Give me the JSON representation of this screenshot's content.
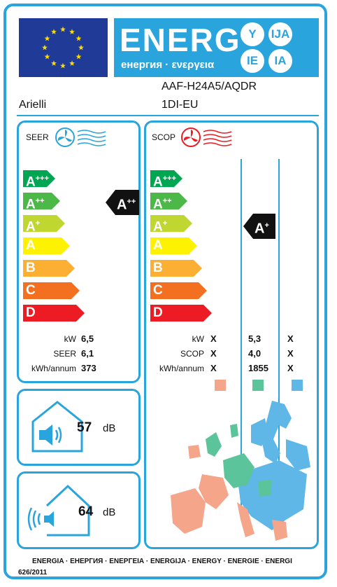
{
  "header": {
    "energy_title": "ENERG",
    "energy_subtitle": "енергия · ενεργεια",
    "lang_circles": [
      "Y",
      "IJA",
      "IE",
      "IA"
    ]
  },
  "product": {
    "supplier": "Arielli",
    "model_line1": "AAF-H24A5/AQDR",
    "model_line2": "1DI-EU"
  },
  "seer": {
    "title": "SEER",
    "scale": [
      {
        "letter": "A",
        "plus": "+++",
        "color": "#00a651"
      },
      {
        "letter": "A",
        "plus": "++",
        "color": "#4cb847"
      },
      {
        "letter": "A",
        "plus": "+",
        "color": "#bfd730"
      },
      {
        "letter": "A",
        "plus": "",
        "color": "#fff200"
      },
      {
        "letter": "B",
        "plus": "",
        "color": "#fbb034"
      },
      {
        "letter": "C",
        "plus": "",
        "color": "#f37021"
      },
      {
        "letter": "D",
        "plus": "",
        "color": "#ed1c24"
      }
    ],
    "rating": {
      "letter": "A",
      "plus": "++"
    },
    "rows": [
      {
        "label": "kW",
        "value": "6,5"
      },
      {
        "label": "SEER",
        "value": "6,1"
      },
      {
        "label": "kWh/annum",
        "value": "373"
      }
    ]
  },
  "scop": {
    "title": "SCOP",
    "scale": [
      {
        "letter": "A",
        "plus": "+++",
        "color": "#00a651"
      },
      {
        "letter": "A",
        "plus": "++",
        "color": "#4cb847"
      },
      {
        "letter": "A",
        "plus": "+",
        "color": "#bfd730"
      },
      {
        "letter": "A",
        "plus": "",
        "color": "#fff200"
      },
      {
        "letter": "B",
        "plus": "",
        "color": "#fbb034"
      },
      {
        "letter": "C",
        "plus": "",
        "color": "#f37021"
      },
      {
        "letter": "D",
        "plus": "",
        "color": "#ed1c24"
      }
    ],
    "rating": {
      "letter": "A",
      "plus": "+"
    },
    "rows": [
      {
        "label": "kW",
        "cols": [
          "X",
          "5,3",
          "X"
        ]
      },
      {
        "label": "SCOP",
        "cols": [
          "X",
          "4,0",
          "X"
        ]
      },
      {
        "label": "kWh/annum",
        "cols": [
          "X",
          "1855",
          "X"
        ]
      }
    ],
    "climate_colors": [
      "#f4a58a",
      "#5cc49a",
      "#5fb7e8"
    ]
  },
  "noise": {
    "indoor_value": "57",
    "indoor_unit": "dB",
    "outdoor_value": "64",
    "outdoor_unit": "dB"
  },
  "footer": {
    "languages": "ENERGIA · ЕНЕРГИЯ · ΕΝΕΡΓΕΙΑ · ENERGIJA · ENERGY · ENERGIE · ENERGI",
    "regulation": "626/2011"
  },
  "colors": {
    "border": "#29a4dd",
    "eu_blue": "#1f3b97",
    "star": "#ffdd00"
  }
}
